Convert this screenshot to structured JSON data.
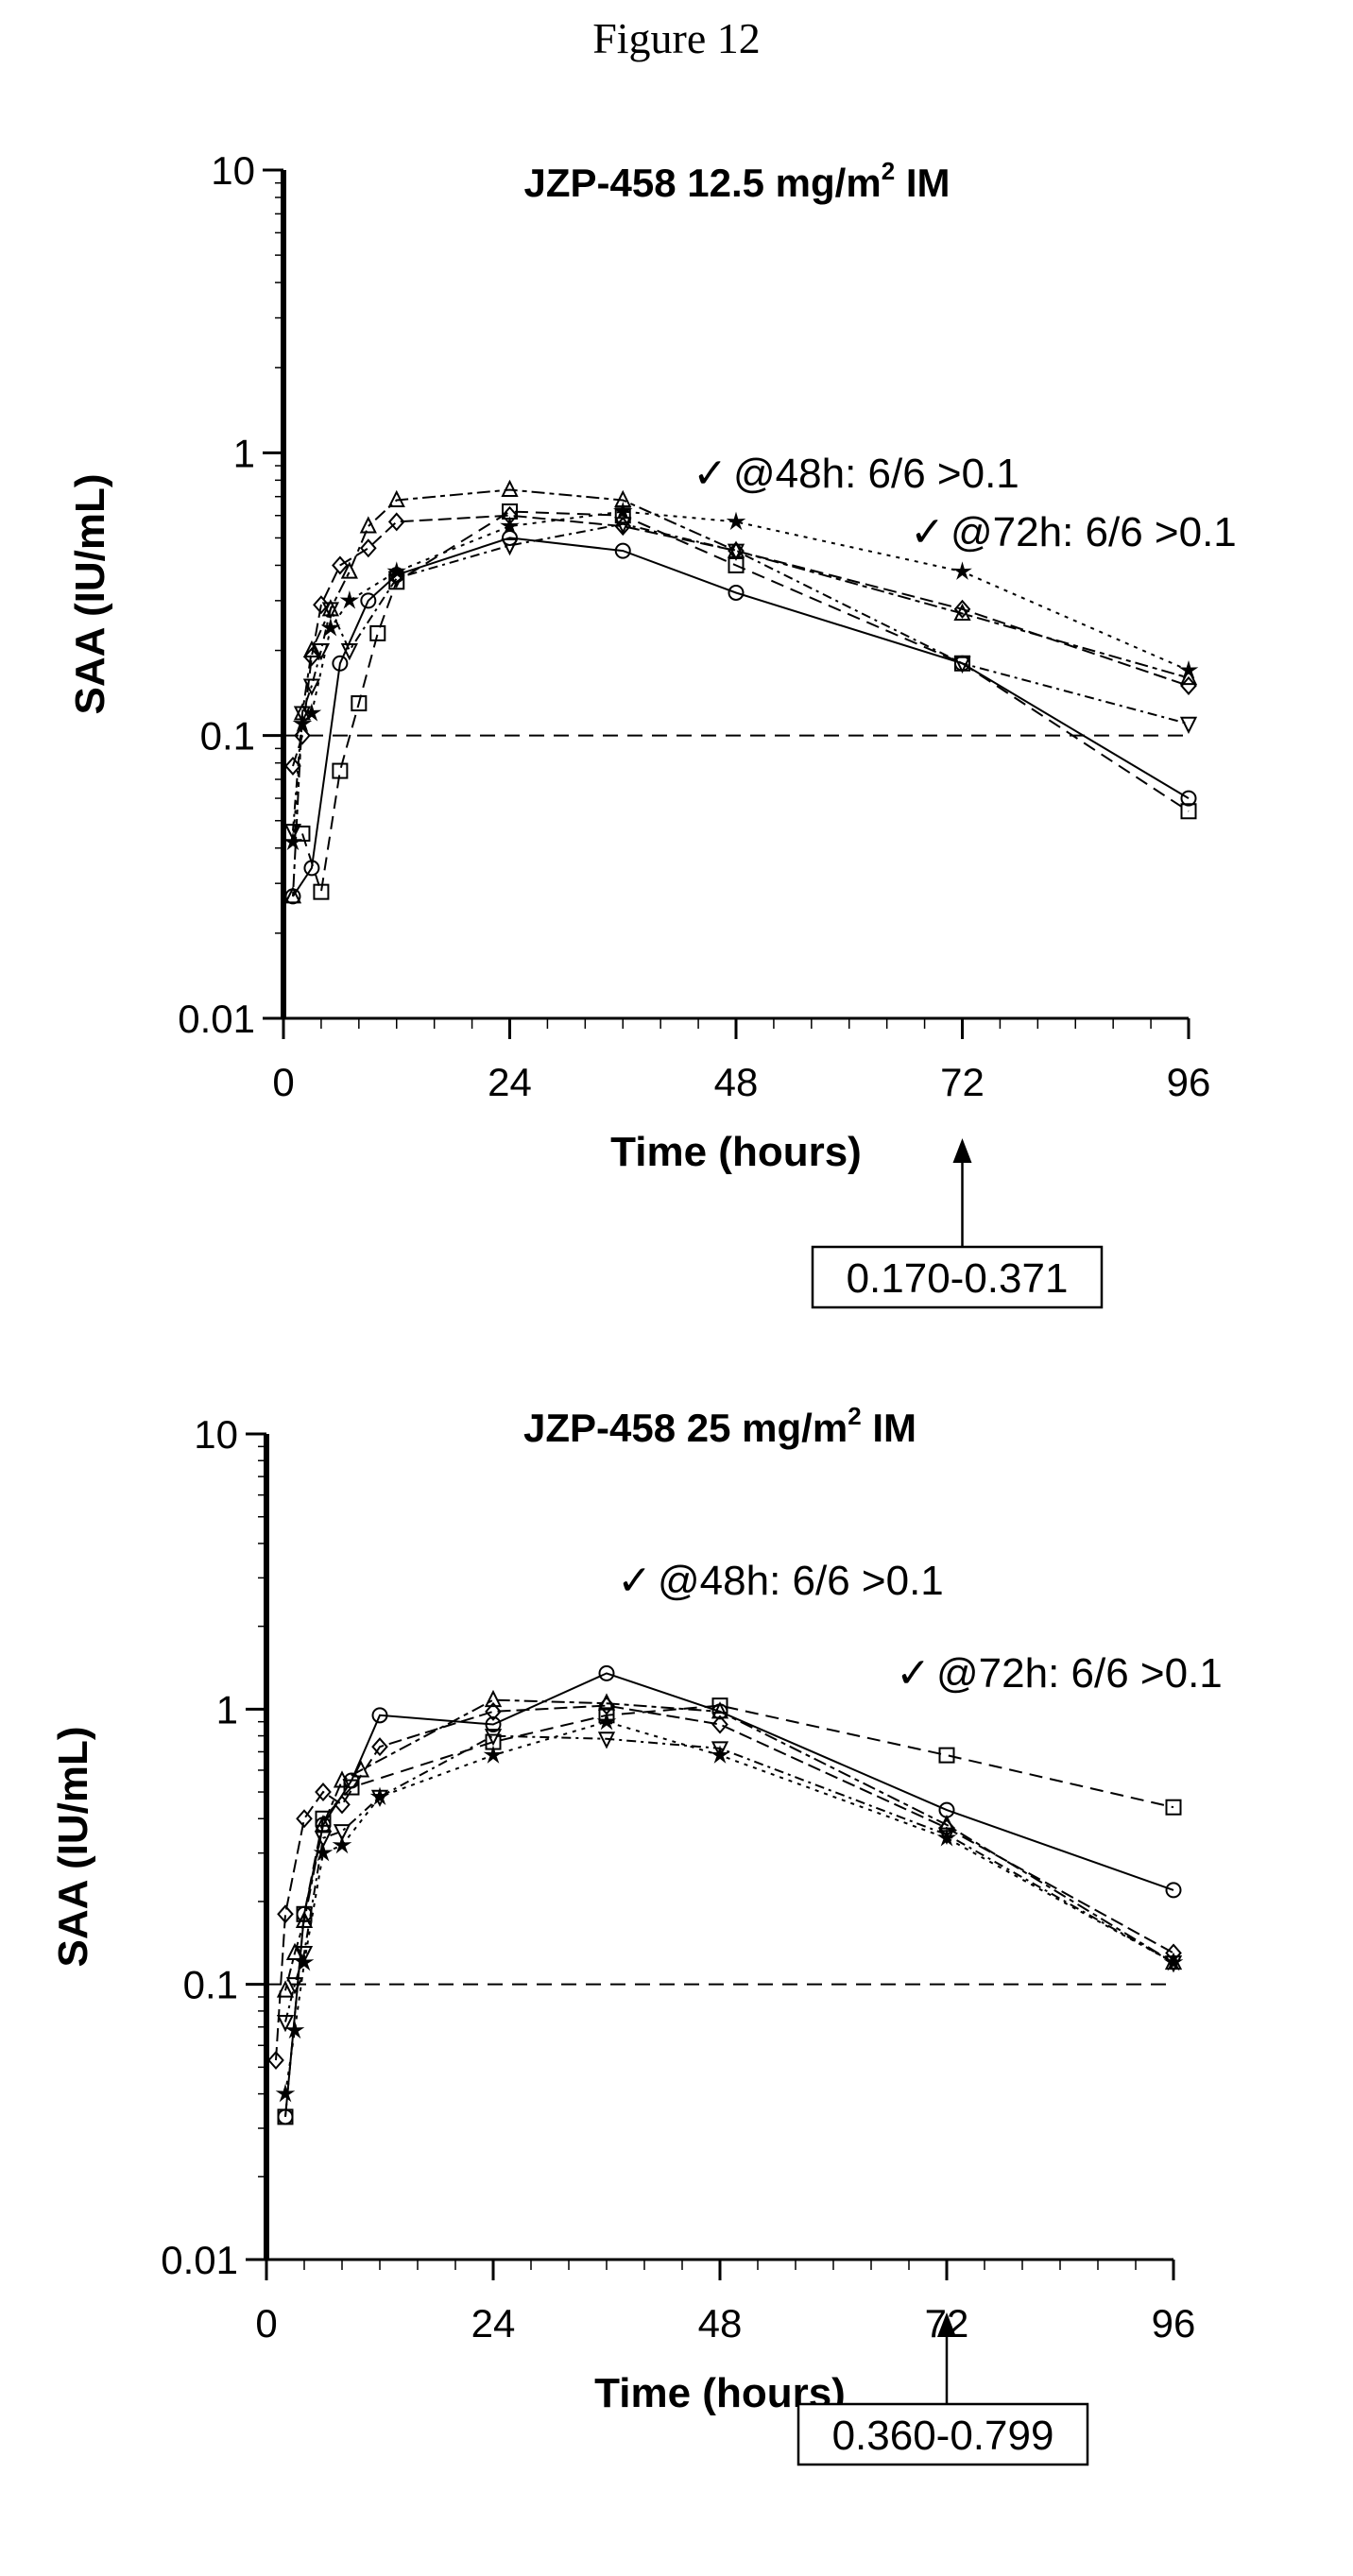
{
  "figure_title": "Figure 12",
  "chart_data": [
    {
      "type": "line",
      "title": "JZP-458 12.5 mg/m",
      "title_superscript": "2",
      "title_suffix": "IM",
      "xlabel": "Time (hours)",
      "ylabel": "SAA (IU/mL)",
      "y_scale": "log",
      "ylim": [
        0.01,
        10
      ],
      "xlim": [
        0,
        96
      ],
      "x_ticks": [
        "0",
        "24",
        "48",
        "72",
        "96"
      ],
      "y_ticks": [
        "0.01",
        "0.1",
        "1",
        "10"
      ],
      "reference_line": 0.1,
      "annotations": [
        "@48h: 6/6 >0.1",
        "@72h: 6/6 >0.1"
      ],
      "check_mark": "✓",
      "range_label": "0.170-0.371",
      "range_arrow_x": 72,
      "series": [
        {
          "marker": "circle",
          "dash": "",
          "x": [
            1,
            3,
            6,
            9,
            12,
            24,
            36,
            48,
            72,
            96
          ],
          "y": [
            0.027,
            0.034,
            0.18,
            0.3,
            0.37,
            0.5,
            0.45,
            0.32,
            0.18,
            0.06
          ]
        },
        {
          "marker": "square",
          "dash": "14,8",
          "x": [
            2,
            4,
            6,
            8,
            10,
            12,
            24,
            36,
            48,
            72,
            96
          ],
          "y": [
            0.045,
            0.028,
            0.075,
            0.13,
            0.23,
            0.35,
            0.62,
            0.6,
            0.4,
            0.18,
            0.054
          ]
        },
        {
          "marker": "triangle",
          "dash": "5,5,14,5",
          "x": [
            1,
            2,
            3,
            5,
            7,
            9,
            12,
            24,
            36,
            48,
            72,
            96
          ],
          "y": [
            0.027,
            0.12,
            0.2,
            0.28,
            0.38,
            0.55,
            0.68,
            0.74,
            0.68,
            0.45,
            0.27,
            0.16
          ]
        },
        {
          "marker": "diamond",
          "dash": "14,6",
          "x": [
            1,
            2,
            3,
            4,
            6,
            9,
            12,
            24,
            36,
            48,
            72,
            96
          ],
          "y": [
            0.078,
            0.1,
            0.19,
            0.29,
            0.4,
            0.46,
            0.57,
            0.6,
            0.55,
            0.45,
            0.28,
            0.15
          ]
        },
        {
          "marker": "star",
          "dash": "4,6",
          "x": [
            1,
            2,
            3,
            5,
            7,
            12,
            24,
            36,
            48,
            72,
            96
          ],
          "y": [
            0.042,
            0.11,
            0.12,
            0.24,
            0.3,
            0.38,
            0.55,
            0.62,
            0.57,
            0.38,
            0.17
          ]
        },
        {
          "marker": "tri-down",
          "dash": "10,5,3,5",
          "x": [
            1,
            2,
            3,
            4,
            5,
            7,
            12,
            24,
            36,
            48,
            72,
            96
          ],
          "y": [
            0.046,
            0.12,
            0.15,
            0.2,
            0.28,
            0.2,
            0.36,
            0.47,
            0.56,
            0.45,
            0.18,
            0.11
          ]
        }
      ]
    },
    {
      "type": "line",
      "title": "JZP-458 25 mg/m",
      "title_superscript": "2",
      "title_suffix": "IM",
      "xlabel": "Time (hours)",
      "ylabel": "SAA (IU/mL)",
      "y_scale": "log",
      "ylim": [
        0.01,
        10
      ],
      "xlim": [
        0,
        96
      ],
      "x_ticks": [
        "0",
        "24",
        "48",
        "72",
        "96"
      ],
      "y_ticks": [
        "0.01",
        "0.1",
        "1",
        "10"
      ],
      "reference_line": 0.1,
      "annotations": [
        "@48h: 6/6 >0.1",
        "@72h: 6/6 >0.1"
      ],
      "check_mark": "✓",
      "range_label": "0.360-0.799",
      "range_arrow_x": 72,
      "series": [
        {
          "marker": "circle",
          "dash": "",
          "x": [
            2,
            4,
            6,
            9,
            12,
            24,
            36,
            48,
            72,
            96
          ],
          "y": [
            0.033,
            0.18,
            0.38,
            0.55,
            0.95,
            0.88,
            1.35,
            0.98,
            0.43,
            0.22
          ]
        },
        {
          "marker": "square",
          "dash": "14,8",
          "x": [
            2,
            4,
            6,
            9,
            24,
            36,
            48,
            72,
            96
          ],
          "y": [
            0.033,
            0.18,
            0.4,
            0.52,
            0.76,
            0.95,
            1.03,
            0.68,
            0.44
          ]
        },
        {
          "marker": "triangle",
          "dash": "5,5,14,5",
          "x": [
            2,
            3,
            4,
            6,
            8,
            10,
            24,
            36,
            48,
            72,
            96
          ],
          "y": [
            0.095,
            0.13,
            0.17,
            0.38,
            0.55,
            0.6,
            1.08,
            1.05,
            0.98,
            0.38,
            0.12
          ]
        },
        {
          "marker": "diamond",
          "dash": "14,6",
          "x": [
            1,
            2,
            4,
            6,
            8,
            12,
            24,
            36,
            48,
            72,
            96
          ],
          "y": [
            0.053,
            0.18,
            0.4,
            0.5,
            0.45,
            0.73,
            0.98,
            1.03,
            0.88,
            0.37,
            0.13
          ]
        },
        {
          "marker": "star",
          "dash": "4,6",
          "x": [
            2,
            3,
            4,
            6,
            8,
            12,
            24,
            36,
            48,
            72,
            96
          ],
          "y": [
            0.04,
            0.068,
            0.12,
            0.3,
            0.32,
            0.48,
            0.68,
            0.9,
            0.68,
            0.34,
            0.12
          ]
        },
        {
          "marker": "tri-down",
          "dash": "10,5,3,5",
          "x": [
            2,
            3,
            4,
            6,
            8,
            12,
            24,
            36,
            48,
            72,
            96
          ],
          "y": [
            0.073,
            0.1,
            0.13,
            0.34,
            0.36,
            0.48,
            0.8,
            0.78,
            0.72,
            0.35,
            0.12
          ]
        }
      ]
    }
  ]
}
